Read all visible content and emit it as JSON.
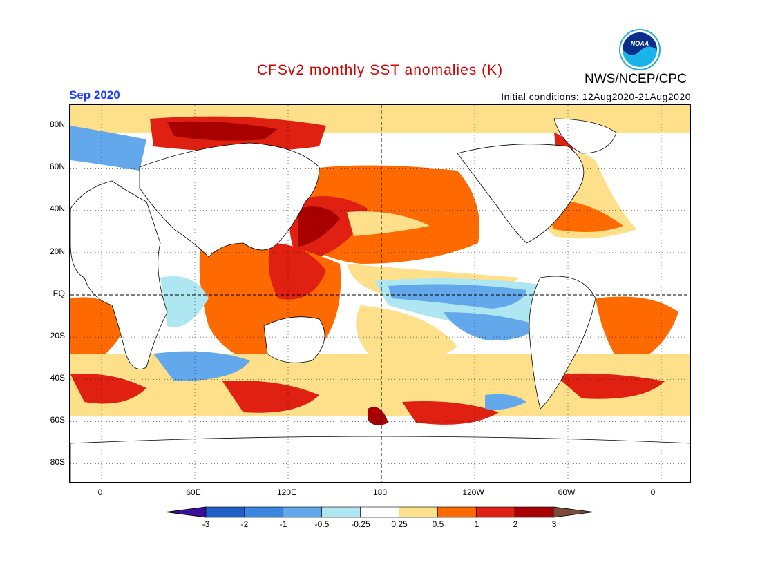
{
  "header": {
    "title": "CFSv2 monthly SST anomalies (K)",
    "agency": "NWS/NCEP/CPC",
    "logo_text": "NOAA",
    "month": "Sep 2020",
    "initial_conditions": "Initial conditions: 12Aug2020-21Aug2020"
  },
  "map": {
    "projection": "cylindrical equidistant",
    "lon_range": [
      -20,
      380
    ],
    "lat_range": [
      -90,
      90
    ],
    "lat_labels": [
      {
        "lat": 80,
        "text": "80N"
      },
      {
        "lat": 60,
        "text": "60N"
      },
      {
        "lat": 40,
        "text": "40N"
      },
      {
        "lat": 20,
        "text": "20N"
      },
      {
        "lat": 0,
        "text": "EQ"
      },
      {
        "lat": -20,
        "text": "20S"
      },
      {
        "lat": -40,
        "text": "40S"
      },
      {
        "lat": -60,
        "text": "60S"
      },
      {
        "lat": -80,
        "text": "80S"
      }
    ],
    "lon_labels": [
      {
        "lon": 0,
        "text": "0"
      },
      {
        "lon": 60,
        "text": "60E"
      },
      {
        "lon": 120,
        "text": "120E"
      },
      {
        "lon": 180,
        "text": "180"
      },
      {
        "lon": 240,
        "text": "120W"
      },
      {
        "lon": 300,
        "text": "60W"
      },
      {
        "lon": 360,
        "text": "0"
      }
    ]
  },
  "colorbar": {
    "levels": [
      "-3",
      "-2",
      "-1",
      "-0.5",
      "-0.25",
      "0.25",
      "0.5",
      "1",
      "2",
      "3"
    ],
    "colors": [
      "#3b0f9b",
      "#1f5fc8",
      "#3b86df",
      "#62a8ea",
      "#aee6f2",
      "#ffffff",
      "#ffe08a",
      "#ff6a00",
      "#e02010",
      "#a80000",
      "#7a4a3a"
    ]
  },
  "anomaly_colors": {
    "strong_warm": "#a80000",
    "warm": "#e02010",
    "moderate_warm": "#ff6a00",
    "weak_warm": "#ffe08a",
    "weak_cool": "#aee6f2",
    "moderate_cool": "#62a8ea",
    "cool": "#3b86df",
    "strong_cool": "#1f5fc8",
    "land": "#ffffff"
  }
}
